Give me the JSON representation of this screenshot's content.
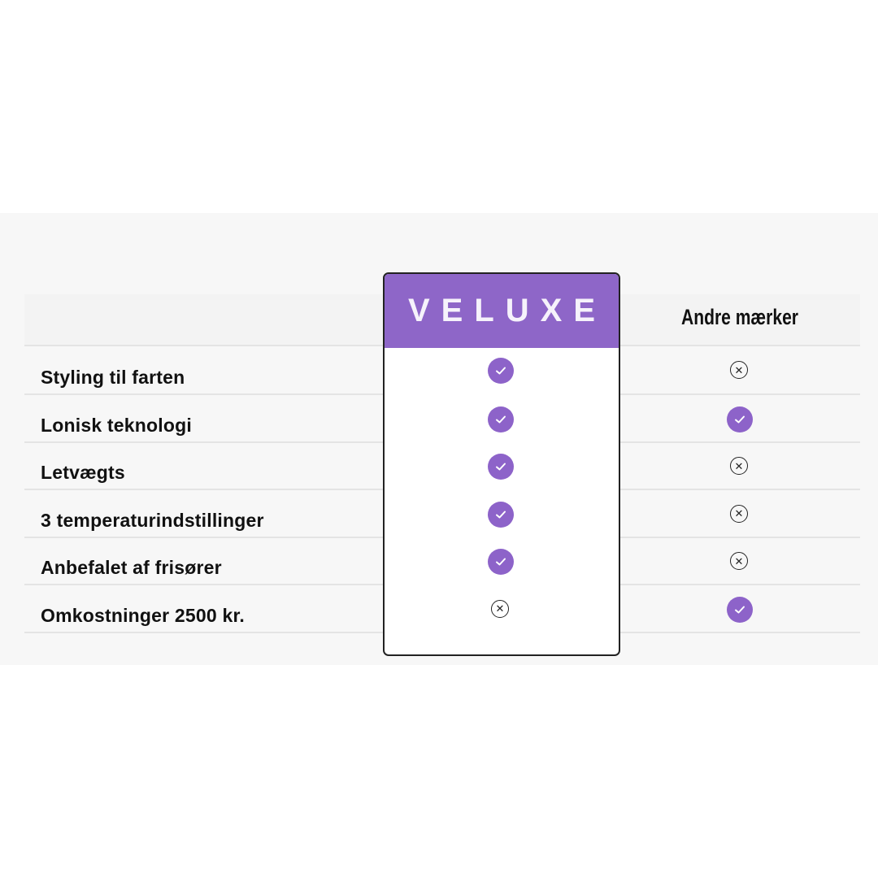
{
  "brand": {
    "name": "VELUXE",
    "color": "#8e66c8"
  },
  "competitor_label": "Andre mærker",
  "rows": [
    {
      "feature": "Styling til farten",
      "veluxe": "check-icon",
      "others": "x-icon"
    },
    {
      "feature": "Lonisk teknologi",
      "veluxe": "check-icon",
      "others": "check-icon"
    },
    {
      "feature": "Letvægts",
      "veluxe": "check-icon",
      "others": "x-icon"
    },
    {
      "feature": "3 temperaturindstillinger",
      "veluxe": "check-icon",
      "others": "x-icon"
    },
    {
      "feature": "Anbefalet af frisører",
      "veluxe": "check-icon",
      "others": "x-icon"
    },
    {
      "feature": "Omkostninger 2500 kr.",
      "veluxe": "x-icon",
      "others": "check-icon"
    }
  ]
}
